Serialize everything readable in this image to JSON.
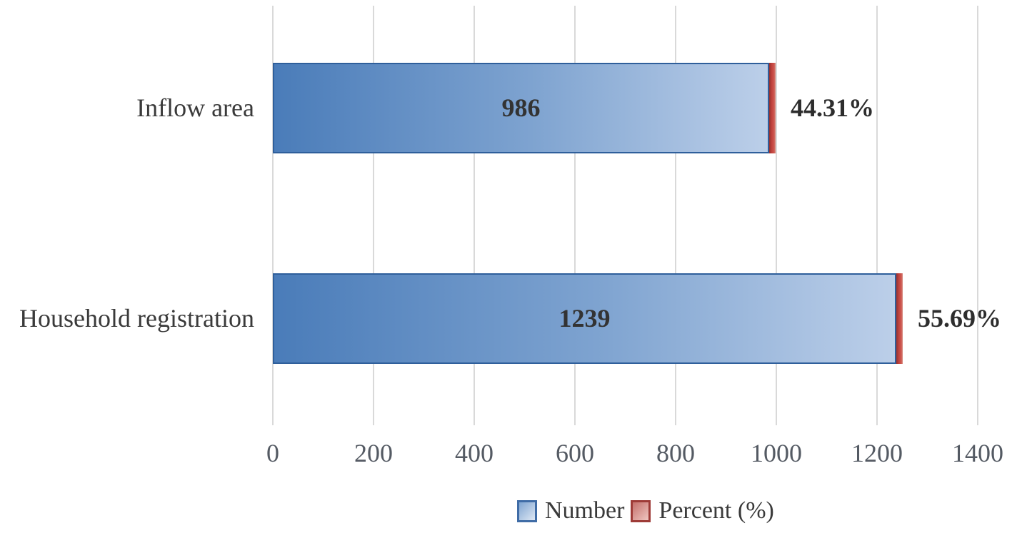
{
  "figure": {
    "background_color": "#ffffff",
    "gridline_color": "#d9d9d9"
  },
  "chart_data": {
    "type": "bar",
    "orientation": "horizontal",
    "title": "",
    "xlabel": "",
    "ylabel": "",
    "categories": [
      "Inflow area",
      "Household registration"
    ],
    "series": [
      {
        "name": "Number",
        "values": [
          986,
          1239
        ],
        "labels": [
          "986",
          "1239"
        ],
        "color": "#4f81bd"
      },
      {
        "name": "Percent (%)",
        "values": [
          44.31,
          55.69
        ],
        "labels": [
          "44.31%",
          "55.69%"
        ],
        "color": "#c0413c"
      }
    ],
    "xlim": [
      0,
      1400
    ],
    "x_ticks": [
      0,
      200,
      400,
      600,
      800,
      1000,
      1200,
      1400
    ],
    "grid": true,
    "legend_position": "bottom"
  }
}
